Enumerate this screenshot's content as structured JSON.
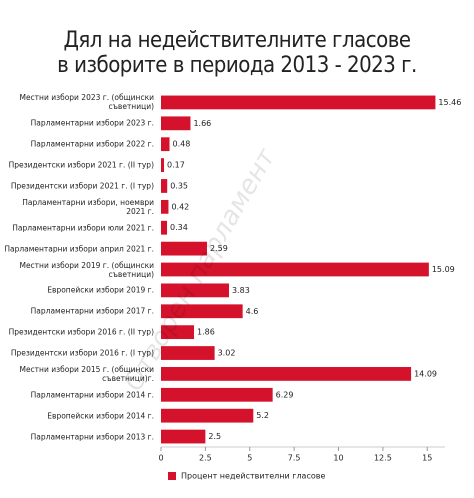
{
  "chart_data": {
    "type": "barh",
    "title": "Дял на недействителните гласове\nв изборите в периода 2013 - 2023 г.",
    "watermark": "Отворен парламент",
    "categories": [
      "Местни избори 2023 г. (общински\nсъветници)",
      "Парламентарни избори 2023 г.",
      "Парламентарни избори 2022 г.",
      "Президентски избори 2021 г. (II тур)",
      "Президентски избори 2021 г. (I тур)",
      "Парламентарни избори, ноември\n2021 г.",
      "Парламентарни избори юли 2021 г.",
      "Парламентарни избори април 2021 г.",
      "Местни избори 2019 г. (общински\nсъветници)",
      "Европейски избори 2019 г.",
      "Парламентарни избори 2017 г.",
      "Президентски избори 2016 г. (II тур)",
      "Президентски избори 2016 г. (I тур)",
      "Местни избори 2015 г. (общински\nсъветници)г.",
      "Парламентарни избори 2014 г.",
      "Европейски избори 2014 г.",
      "Парламентарни избори 2013 г."
    ],
    "series": [
      {
        "name": "Процент недействителни гласове",
        "color": "#d4122b",
        "values": [
          15.46,
          1.66,
          0.48,
          0.17,
          0.35,
          0.42,
          0.34,
          2.59,
          15.09,
          3.83,
          4.6,
          1.86,
          3.02,
          14.09,
          6.29,
          5.2,
          2.5
        ]
      }
    ],
    "xlim": [
      0,
      16
    ],
    "xticks": [
      0,
      2.5,
      5,
      7.5,
      10,
      12.5,
      15
    ],
    "legend": "bottom"
  }
}
